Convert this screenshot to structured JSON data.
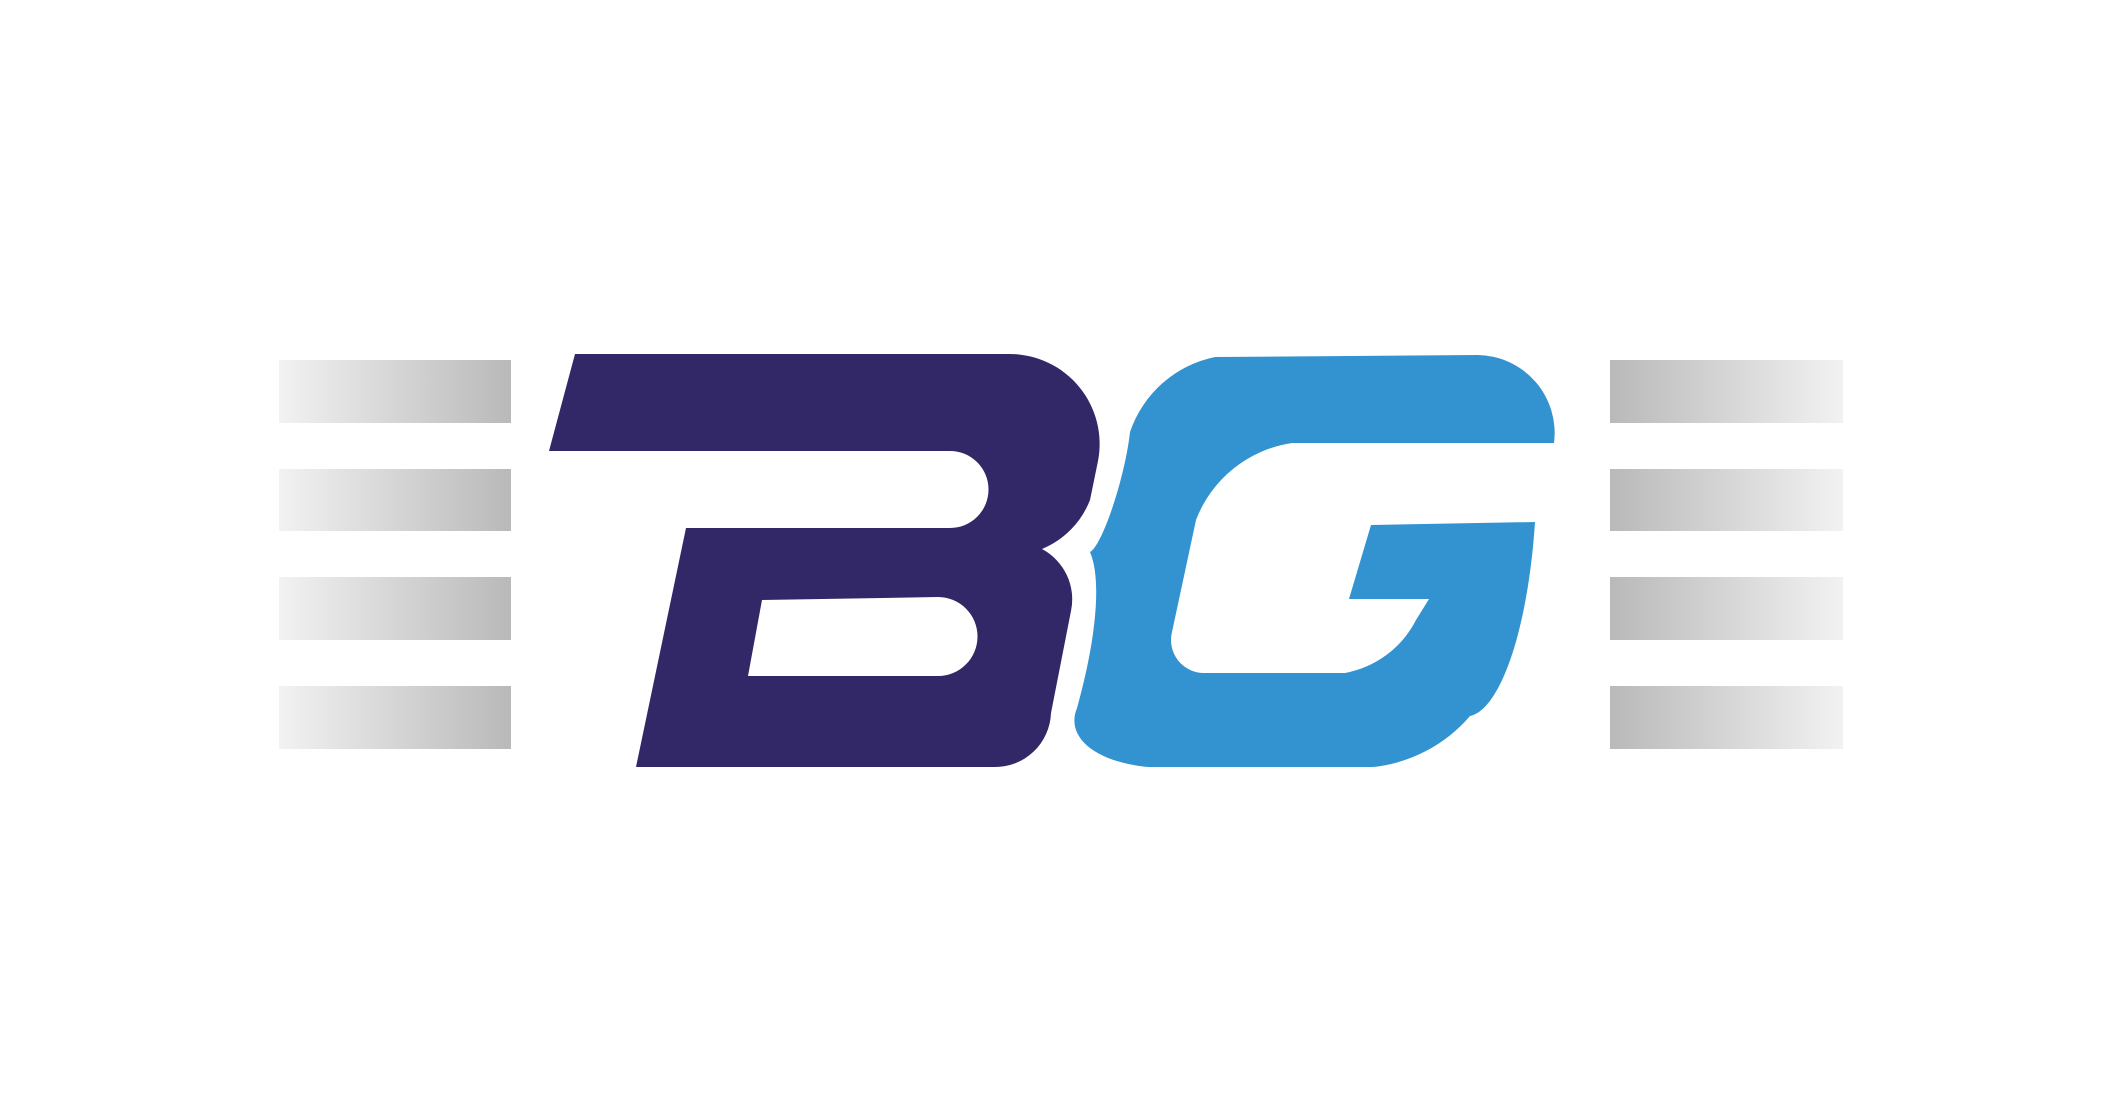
{
  "logo": {
    "text": "BG",
    "letters": [
      "B",
      "G"
    ],
    "colors": {
      "background": "#ffffff",
      "letter_b": "#322868",
      "letter_g": "#3293d0",
      "stripe_light": "#f2f2f2",
      "stripe_dark": "#b9b9b9"
    },
    "left_stripes": 4,
    "right_stripes": 4
  }
}
